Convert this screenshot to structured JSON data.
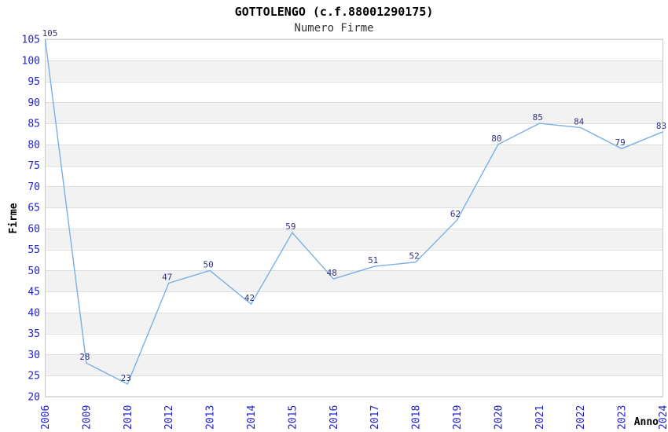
{
  "page": {
    "background": "#ffffff"
  },
  "header": {
    "title": "GOTTOLENGO (c.f.88001290175)",
    "subtitle": "Numero Firme"
  },
  "axis_titles": {
    "y": "Firme",
    "x": "Anno"
  },
  "colors": {
    "line": "#79b0e5",
    "data_label": "#333380",
    "tick_label": "#2222cd",
    "band": "#f2f2f2",
    "gridline": "#dedede",
    "plot_border": "#c9c9c9",
    "axis_title": "#000000",
    "title": "#000000",
    "subtitle": "#333333"
  },
  "chart_data": {
    "type": "line",
    "title": "GOTTOLENGO (c.f.88001290175)",
    "subtitle": "Numero Firme",
    "xlabel": "Anno",
    "ylabel": "Firme",
    "categories": [
      "2006",
      "2009",
      "2010",
      "2012",
      "2013",
      "2014",
      "2015",
      "2016",
      "2017",
      "2018",
      "2019",
      "2020",
      "2021",
      "2022",
      "2023",
      "2024"
    ],
    "values": [
      105,
      28,
      23,
      47,
      50,
      42,
      59,
      48,
      51,
      52,
      62,
      80,
      85,
      84,
      79,
      83
    ],
    "ylim": [
      20,
      105
    ],
    "ytick_step": 5,
    "grid": true,
    "plot_bands_alternating": true,
    "data_labels": true,
    "legend": "none"
  }
}
